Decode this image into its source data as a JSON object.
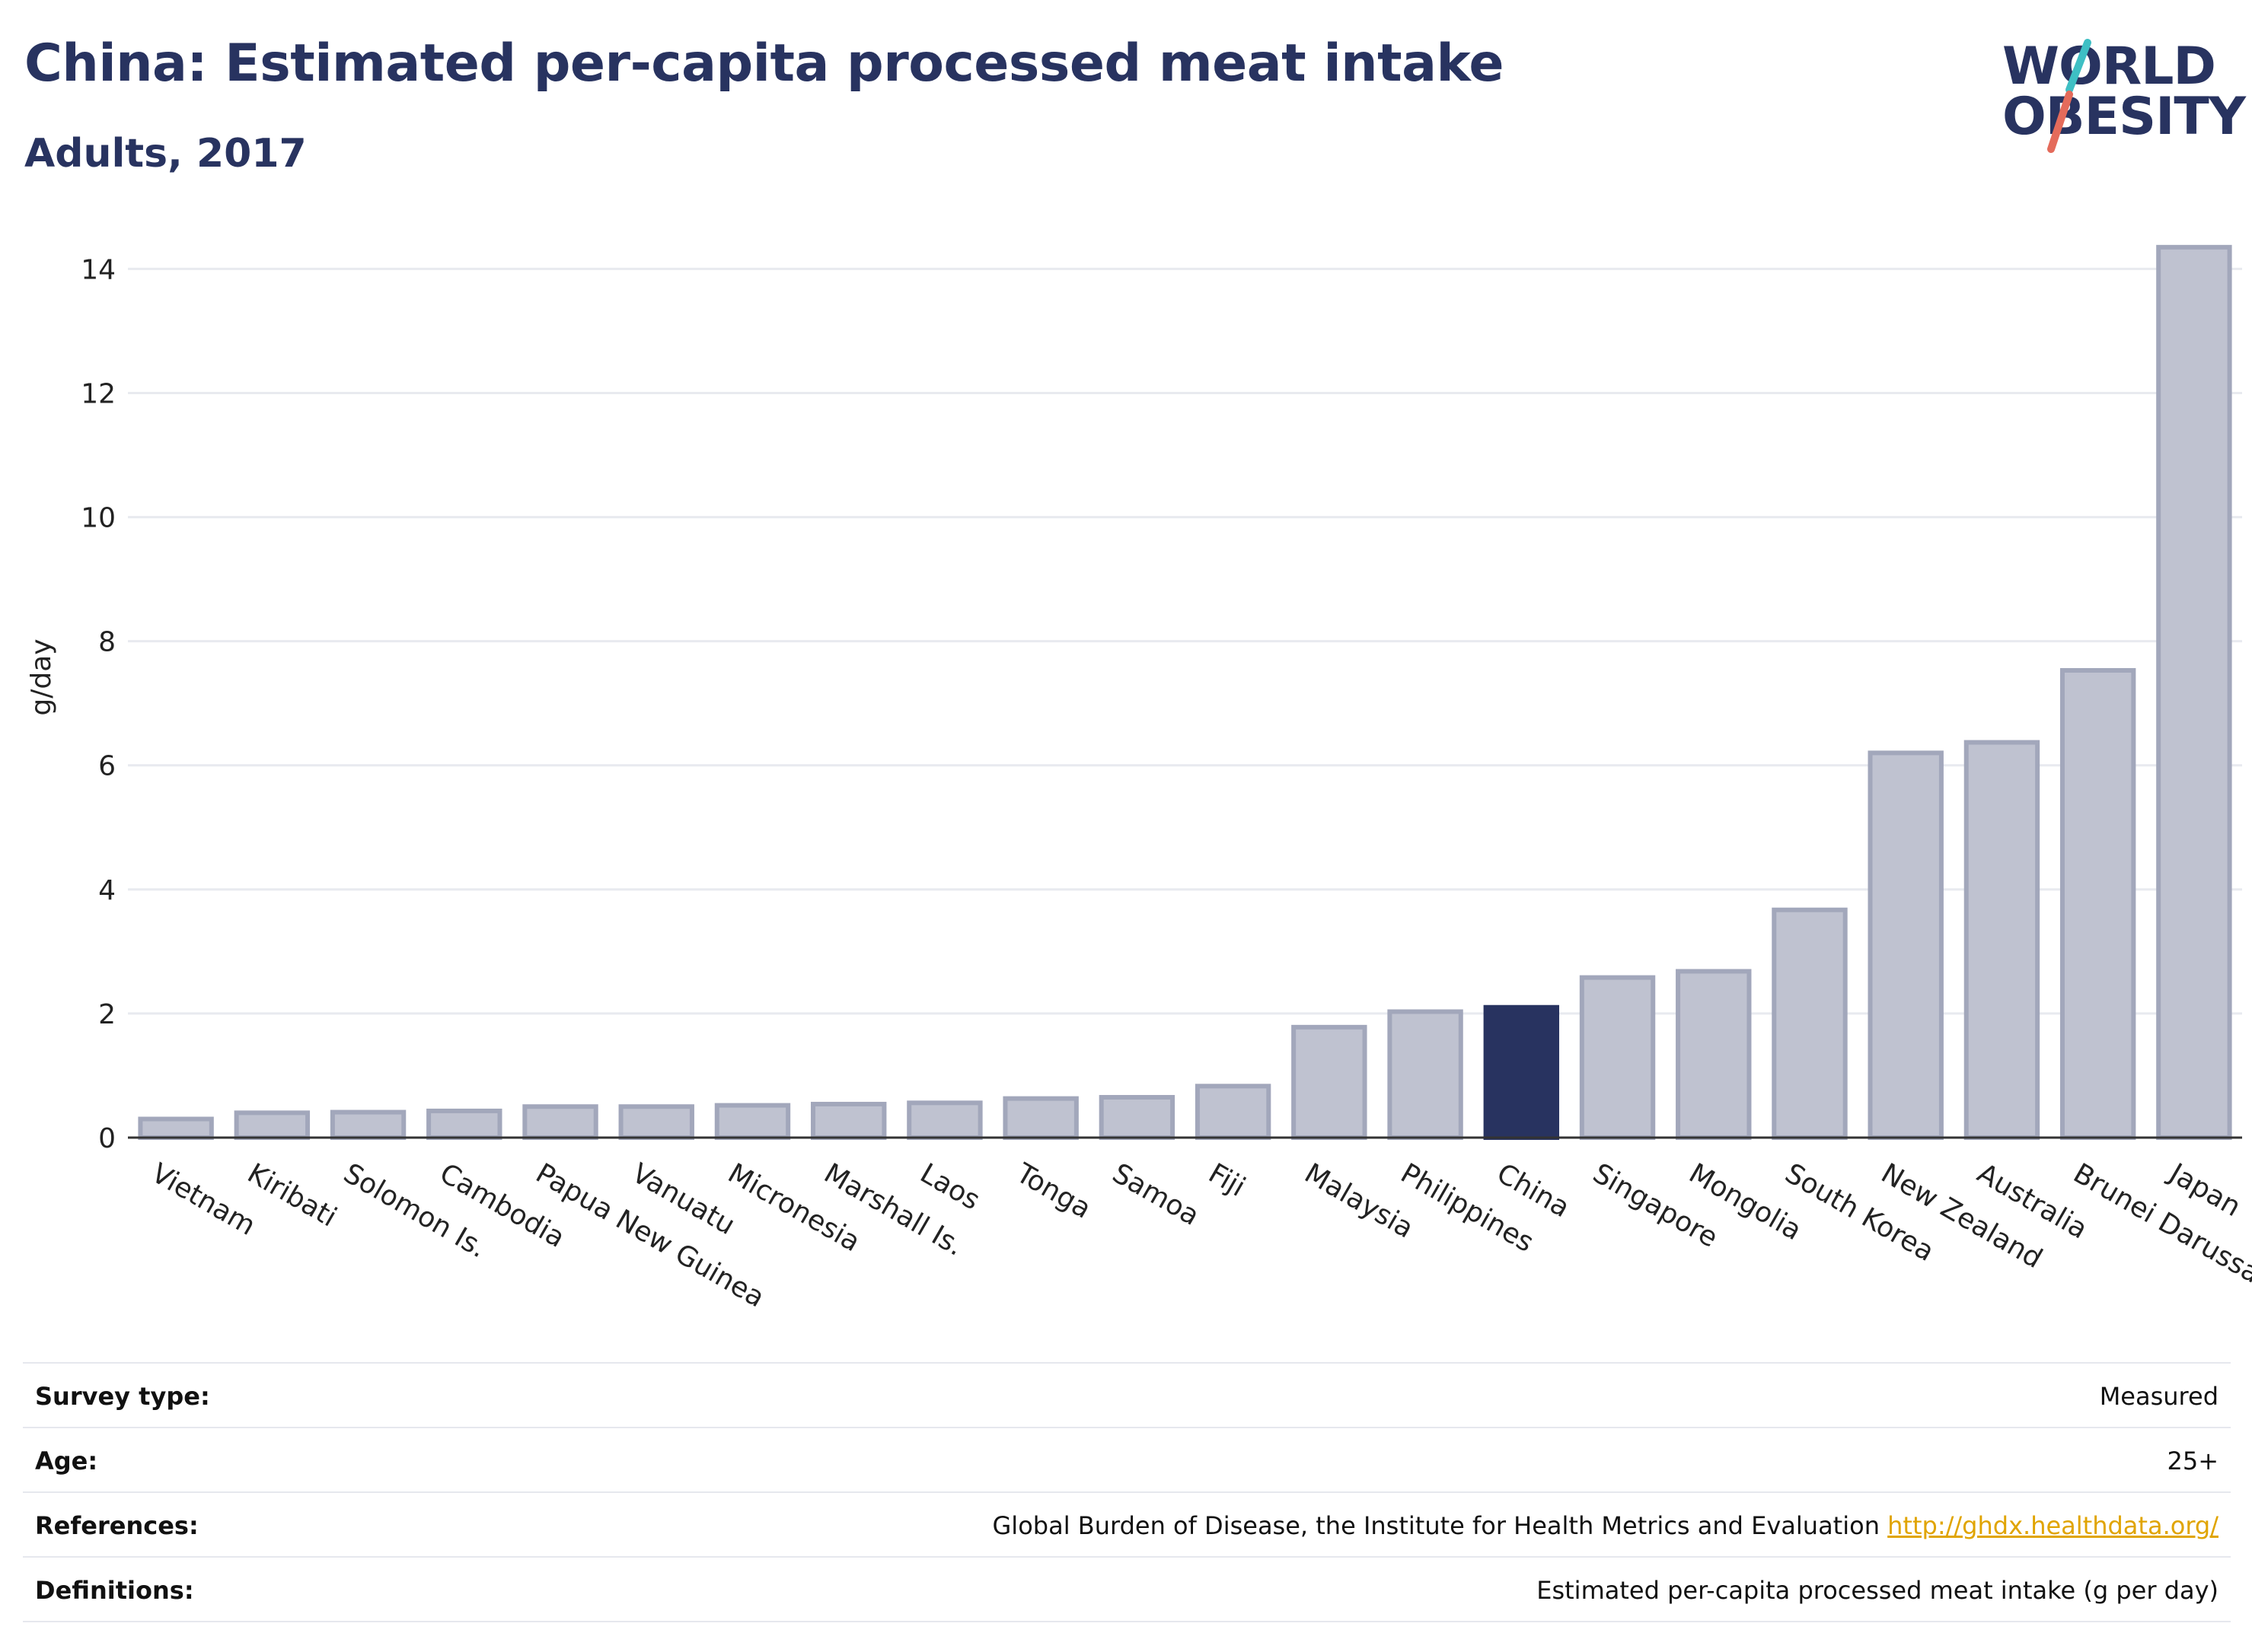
{
  "header": {
    "title": "China: Estimated per-capita processed meat intake",
    "subtitle": "Adults, 2017"
  },
  "logo": {
    "line1": "WORLD",
    "line2": "OBESITY",
    "slash_colors": [
      "#3ebfc4",
      "#e46b5b"
    ]
  },
  "colors": {
    "highlight": "#283360",
    "bar": "#bfc2d0",
    "bar_stroke": "#a2a7bb",
    "grid": "#e8eaef"
  },
  "chart_data": {
    "type": "bar",
    "categories": [
      "Vietnam",
      "Kiribati",
      "Solomon Is.",
      "Cambodia",
      "Papua New Guinea",
      "Vanuatu",
      "Micronesia",
      "Marshall Is.",
      "Laos",
      "Tonga",
      "Samoa",
      "Fiji",
      "Malaysia",
      "Philippines",
      "China",
      "Singapore",
      "Mongolia",
      "South Korea",
      "New Zealand",
      "Australia",
      "Brunei Darussalam",
      "Japan"
    ],
    "values": [
      0.3,
      0.4,
      0.41,
      0.43,
      0.5,
      0.5,
      0.52,
      0.54,
      0.56,
      0.63,
      0.65,
      0.83,
      1.78,
      2.03,
      2.1,
      2.58,
      2.68,
      3.67,
      6.2,
      6.37,
      7.53,
      14.35
    ],
    "highlight": "China",
    "title": "China: Estimated per-capita processed meat intake",
    "subtitle": "Adults, 2017",
    "xlabel": "",
    "ylabel": "g/day",
    "ylim": [
      0,
      14.9
    ],
    "yticks": [
      0,
      2,
      4,
      6,
      8,
      10,
      12,
      14
    ],
    "grid": true,
    "legend": "none"
  },
  "meta": {
    "survey_type_label": "Survey type:",
    "survey_type_value": "Measured",
    "age_label": "Age:",
    "age_value": "25+",
    "references_label": "References:",
    "references_value": "Global Burden of Disease, the Institute for Health Metrics and Evaluation",
    "references_link": "http://ghdx.healthdata.org/",
    "definitions_label": "Definitions:",
    "definitions_value": "Estimated per-capita processed meat intake (g per day)"
  }
}
